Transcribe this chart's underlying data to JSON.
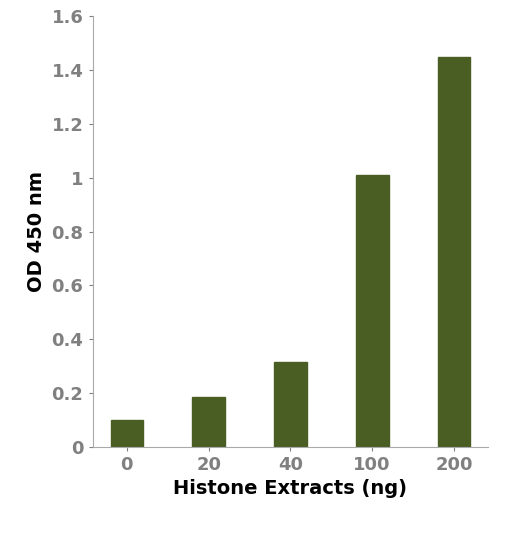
{
  "categories": [
    "0",
    "20",
    "40",
    "100",
    "200"
  ],
  "values": [
    0.1,
    0.185,
    0.315,
    1.01,
    1.45
  ],
  "bar_color": "#4a5e24",
  "xlabel": "Histone Extracts (ng)",
  "ylabel": "OD 450 nm",
  "ylim": [
    0,
    1.6
  ],
  "yticks": [
    0,
    0.2,
    0.4,
    0.6,
    0.8,
    1.0,
    1.2,
    1.4,
    1.6
  ],
  "ytick_labels": [
    "0",
    "0.2",
    "0.4",
    "0.6",
    "0.8",
    "1",
    "1.2",
    "1.4",
    "1.6"
  ],
  "bar_width": 0.4,
  "xlabel_fontsize": 14,
  "ylabel_fontsize": 14,
  "tick_fontsize": 13,
  "spine_color": "#aaaaaa",
  "figure_width": 5.14,
  "figure_height": 5.45,
  "dpi": 100
}
